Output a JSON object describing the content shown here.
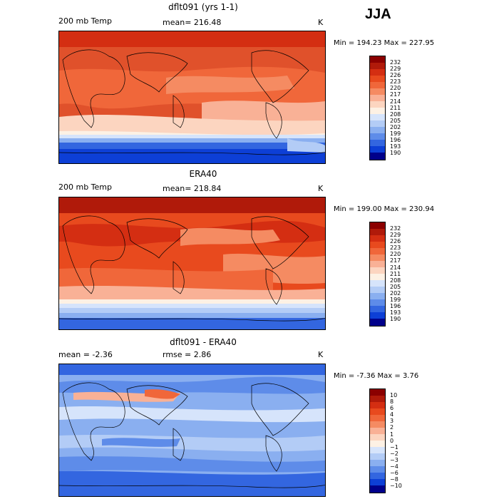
{
  "header": {
    "season": "JJA"
  },
  "panels": [
    {
      "title": "dflt091 (yrs 1-1)",
      "left_label": "200 mb Temp",
      "center_label": "mean= 216.48",
      "unit": "K",
      "stats": "Min = 194.23 Max = 227.95",
      "colorbar": {
        "labels": [
          "232",
          "229",
          "226",
          "223",
          "220",
          "217",
          "214",
          "211",
          "208",
          "205",
          "202",
          "199",
          "196",
          "193",
          "190"
        ],
        "colors": [
          "#8b0000",
          "#b01a0a",
          "#d42e12",
          "#e84a1e",
          "#f0673a",
          "#f58b62",
          "#f9b196",
          "#fcd5c0",
          "#fdf1e4",
          "#d6e4fb",
          "#b3ccf6",
          "#8aaff0",
          "#5e8ce9",
          "#3366e0",
          "#0d3fd6",
          "#00008b"
        ]
      }
    },
    {
      "title": "ERA40",
      "left_label": "200 mb Temp",
      "center_label": "mean= 218.84",
      "unit": "K",
      "stats": "Min = 199.00 Max = 230.94",
      "colorbar": {
        "labels": [
          "232",
          "229",
          "226",
          "223",
          "220",
          "217",
          "214",
          "211",
          "208",
          "205",
          "202",
          "199",
          "196",
          "193",
          "190"
        ],
        "colors": [
          "#8b0000",
          "#b01a0a",
          "#d42e12",
          "#e84a1e",
          "#f0673a",
          "#f58b62",
          "#f9b196",
          "#fcd5c0",
          "#fdf1e4",
          "#d6e4fb",
          "#b3ccf6",
          "#8aaff0",
          "#5e8ce9",
          "#3366e0",
          "#0d3fd6",
          "#00008b"
        ]
      }
    },
    {
      "title": "dflt091 - ERA40",
      "left_label": "mean = -2.36",
      "center_label": "rmse = 2.86",
      "unit": "K",
      "stats": "Min = -7.36 Max = 3.76",
      "colorbar": {
        "labels": [
          "10",
          "8",
          "6",
          "4",
          "3",
          "2",
          "1",
          "0",
          "−1",
          "−2",
          "−3",
          "−4",
          "−6",
          "−8",
          "−10"
        ],
        "colors": [
          "#8b0000",
          "#b01a0a",
          "#d42e12",
          "#e84a1e",
          "#f0673a",
          "#f58b62",
          "#f9b196",
          "#fcd5c0",
          "#fdf1e4",
          "#d6e4fb",
          "#b3ccf6",
          "#8aaff0",
          "#5e8ce9",
          "#3366e0",
          "#0d3fd6",
          "#00008b"
        ]
      }
    }
  ]
}
